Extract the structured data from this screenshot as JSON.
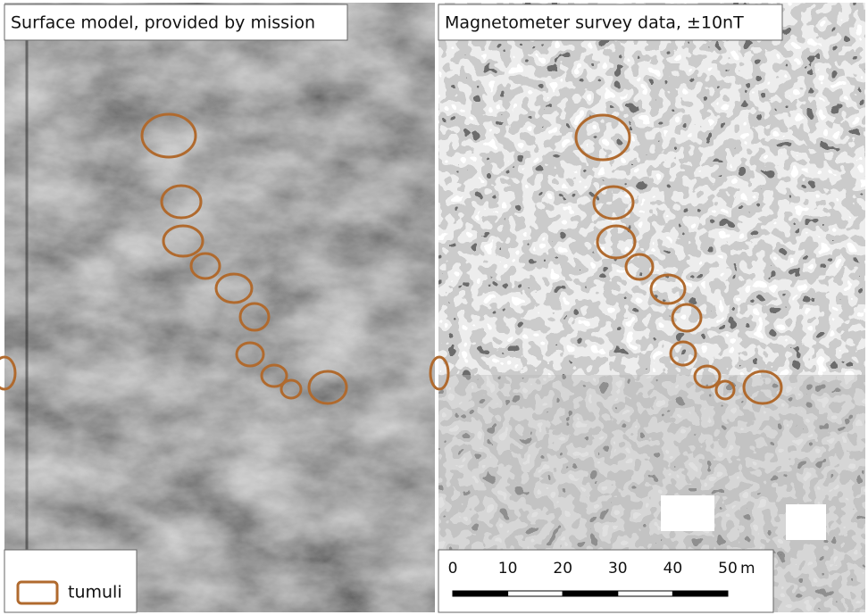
{
  "panels": [
    {
      "title": "Surface model, provided by mission"
    },
    {
      "title": "Magnetometer survey data, ±10nT"
    }
  ],
  "legend": {
    "label": "tumuli"
  },
  "scale_bar": {
    "ticks": [
      0,
      10,
      20,
      30,
      40,
      50
    ],
    "unit": "m"
  }
}
